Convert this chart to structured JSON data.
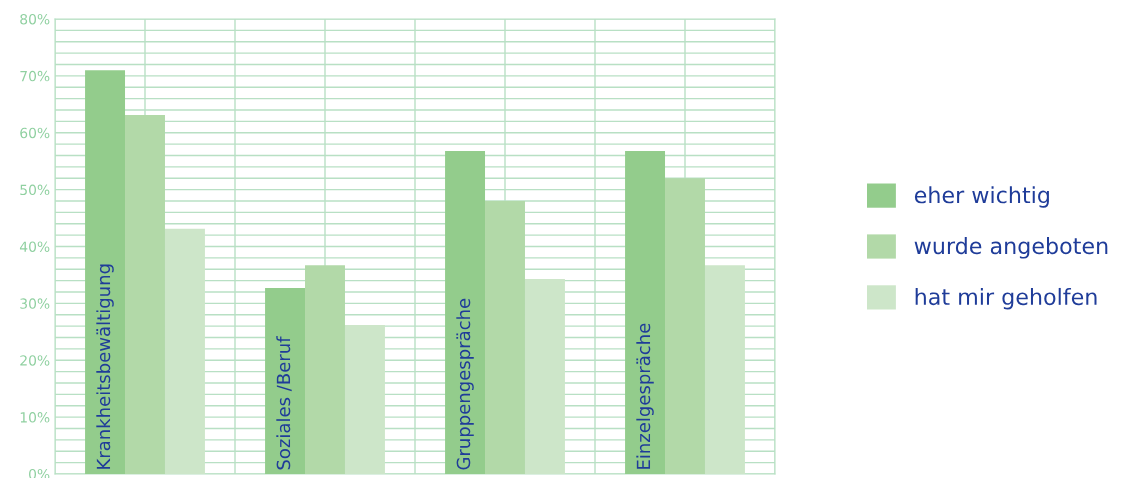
{
  "chart_data": {
    "type": "bar",
    "categories": [
      "Krankheitsbewältigung",
      "Soziales /Beruf",
      "Gruppengespräche",
      "Einzelgespräche"
    ],
    "series": [
      {
        "name": "eher wichtig",
        "color": "#93cc8c",
        "values": [
          71,
          32.7,
          56.8,
          56.8
        ]
      },
      {
        "name": "wurde angeboten",
        "color": "#b2d9a8",
        "values": [
          63.1,
          36.7,
          48,
          52
        ]
      },
      {
        "name": "hat mir geholfen",
        "color": "#cde6c9",
        "values": [
          43.1,
          26.2,
          34.3,
          36.7
        ]
      }
    ],
    "ylim": [
      0,
      80
    ],
    "yticks": [
      {
        "value": 0,
        "label": "0%"
      },
      {
        "value": 2,
        "label": null
      },
      {
        "value": 4,
        "label": null
      },
      {
        "value": 6,
        "label": null
      },
      {
        "value": 8,
        "label": null
      },
      {
        "value": 10,
        "label": "10%"
      },
      {
        "value": 12,
        "label": null
      },
      {
        "value": 14,
        "label": null
      },
      {
        "value": 16,
        "label": null
      },
      {
        "value": 18,
        "label": null
      },
      {
        "value": 20,
        "label": "20%"
      },
      {
        "value": 22,
        "label": null
      },
      {
        "value": 24,
        "label": null
      },
      {
        "value": 26,
        "label": null
      },
      {
        "value": 28,
        "label": null
      },
      {
        "value": 30,
        "label": "30%"
      },
      {
        "value": 32,
        "label": null
      },
      {
        "value": 34,
        "label": null
      },
      {
        "value": 36,
        "label": null
      },
      {
        "value": 38,
        "label": null
      },
      {
        "value": 40,
        "label": "40%"
      },
      {
        "value": 42,
        "label": null
      },
      {
        "value": 44,
        "label": null
      },
      {
        "value": 46,
        "label": null
      },
      {
        "value": 48,
        "label": null
      },
      {
        "value": 50,
        "label": "50%"
      },
      {
        "value": 52,
        "label": null
      },
      {
        "value": 54,
        "label": null
      },
      {
        "value": 56,
        "label": null
      },
      {
        "value": 58,
        "label": null
      },
      {
        "value": 60,
        "label": "60%"
      },
      {
        "value": 62,
        "label": null
      },
      {
        "value": 64,
        "label": null
      },
      {
        "value": 66,
        "label": null
      },
      {
        "value": 68,
        "label": null
      },
      {
        "value": 70,
        "label": "70%"
      },
      {
        "value": 72,
        "label": null
      },
      {
        "value": 74,
        "label": null
      },
      {
        "value": 76,
        "label": null
      },
      {
        "value": 78,
        "label": null
      },
      {
        "value": 80,
        "label": "80%"
      }
    ],
    "grid": true,
    "legend": "right"
  }
}
